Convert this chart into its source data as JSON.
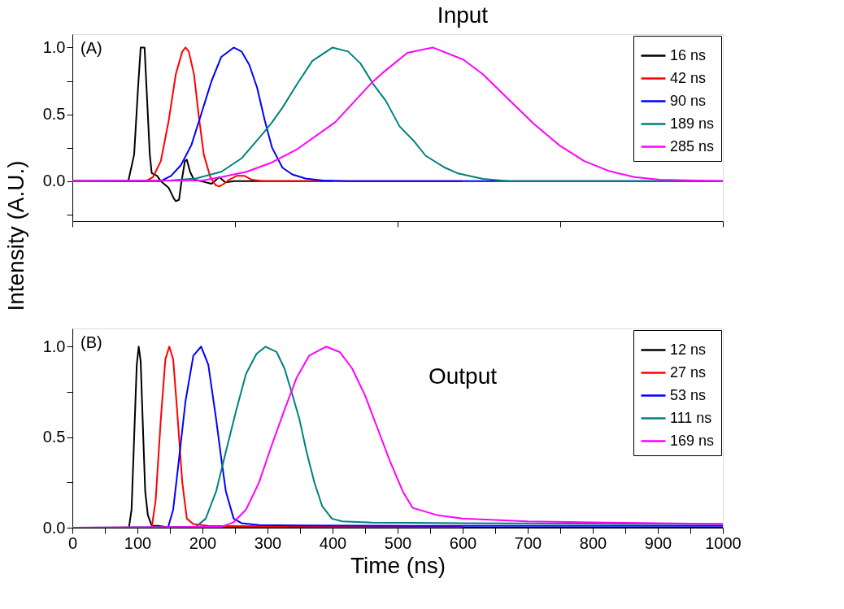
{
  "chart_data": [
    {
      "type": "line",
      "title": "Input",
      "ylabel": "Intensity (A.U.)",
      "annotations": [
        "(A)"
      ],
      "xlim": [
        0,
        1000
      ],
      "ylim": [
        -0.3,
        1.1
      ],
      "xticks": [
        {
          "value": 0,
          "label": null
        },
        {
          "value": 250,
          "label": null
        },
        {
          "value": 500,
          "label": null
        },
        {
          "value": 750,
          "label": null
        },
        {
          "value": 1000,
          "label": null
        }
      ],
      "yticks": [
        {
          "value": -0.25,
          "label": null
        },
        {
          "value": 0,
          "label": "0.0"
        },
        {
          "value": 0.25,
          "label": null
        },
        {
          "value": 0.5,
          "label": "0.5"
        },
        {
          "value": 0.75,
          "label": null
        },
        {
          "value": 1.0,
          "label": "1.0"
        }
      ],
      "tick_labels": "y",
      "legend": "top right",
      "grid": false,
      "series": [
        {
          "name": "16 ns",
          "color": "#000000",
          "x": [
            0,
            86,
            95,
            101,
            105,
            111,
            115,
            119,
            122,
            130,
            136,
            148,
            156,
            159,
            164,
            167,
            173,
            176,
            181,
            187,
            198,
            214,
            226,
            235,
            249,
            268,
            292,
            400
          ],
          "values": [
            0,
            0,
            0.2,
            0.7,
            1.0,
            1.0,
            0.6,
            0.2,
            0.06,
            0.04,
            0.0,
            -0.05,
            -0.13,
            -0.15,
            -0.14,
            -0.03,
            0.15,
            0.16,
            0.07,
            0.01,
            0.0,
            -0.02,
            0.03,
            -0.01,
            0.0,
            0.0,
            0.0,
            0.0
          ]
        },
        {
          "name": "42 ns",
          "color": "#ff0000",
          "x": [
            0,
            113,
            124,
            136,
            148,
            159,
            169,
            174,
            179,
            187,
            194,
            202,
            212,
            220,
            226,
            233,
            241,
            253,
            264,
            276,
            292,
            400,
            600
          ],
          "values": [
            0,
            0,
            0.03,
            0.15,
            0.45,
            0.8,
            0.97,
            1.0,
            0.97,
            0.8,
            0.5,
            0.2,
            0.03,
            -0.03,
            -0.04,
            -0.02,
            0.01,
            0.04,
            0.04,
            0.01,
            0.0,
            0.0,
            0.0
          ]
        },
        {
          "name": "90 ns",
          "color": "#0000ff",
          "x": [
            0,
            136,
            152,
            167,
            183,
            198,
            214,
            229,
            248,
            260,
            272,
            284,
            296,
            307,
            323,
            338,
            358,
            385,
            424,
            600,
            800,
            1000
          ],
          "values": [
            0,
            0.0,
            0.04,
            0.12,
            0.27,
            0.5,
            0.75,
            0.93,
            1.0,
            0.97,
            0.87,
            0.7,
            0.45,
            0.25,
            0.1,
            0.05,
            0.02,
            0.005,
            0.0,
            0.0,
            0.0,
            0.0
          ]
        },
        {
          "name": "189 ns",
          "color": "#008080",
          "x": [
            0,
            150,
            190,
            229,
            260,
            292,
            307,
            323,
            346,
            369,
            400,
            424,
            443,
            462,
            482,
            503,
            525,
            543,
            573,
            593,
            631,
            671,
            800,
            1000
          ],
          "values": [
            0,
            0.005,
            0.02,
            0.07,
            0.17,
            0.35,
            0.44,
            0.55,
            0.73,
            0.9,
            1.0,
            0.97,
            0.88,
            0.73,
            0.6,
            0.41,
            0.3,
            0.19,
            0.1,
            0.057,
            0.017,
            0.0,
            0.0,
            0.0
          ]
        },
        {
          "name": "285 ns",
          "color": "#ff00ff",
          "x": [
            0,
            200,
            229,
            268,
            307,
            346,
            404,
            461,
            477,
            515,
            554,
            601,
            631,
            671,
            709,
            748,
            787,
            826,
            864,
            903,
            1000
          ],
          "values": [
            0,
            0.005,
            0.03,
            0.07,
            0.14,
            0.24,
            0.44,
            0.74,
            0.81,
            0.96,
            1.0,
            0.91,
            0.8,
            0.61,
            0.43,
            0.27,
            0.15,
            0.074,
            0.03,
            0.01,
            0.0
          ]
        }
      ]
    },
    {
      "type": "line",
      "title": "Output",
      "xlabel": "Time (ns)",
      "annotations": [
        "(B)"
      ],
      "xlim": [
        0,
        1000
      ],
      "ylim": [
        0,
        1.1
      ],
      "xticks": [
        0,
        {
          "value": 50,
          "label": null
        },
        100,
        {
          "value": 150,
          "label": null
        },
        200,
        {
          "value": 250,
          "label": null
        },
        300,
        {
          "value": 350,
          "label": null
        },
        400,
        {
          "value": 450,
          "label": null
        },
        500,
        {
          "value": 550,
          "label": null
        },
        600,
        {
          "value": 650,
          "label": null
        },
        700,
        {
          "value": 750,
          "label": null
        },
        800,
        {
          "value": 850,
          "label": null
        },
        900,
        {
          "value": 950,
          "label": null
        },
        1000
      ],
      "yticks": [
        {
          "value": 0,
          "label": "0.0"
        },
        {
          "value": 0.25,
          "label": null
        },
        {
          "value": 0.5,
          "label": "0.5"
        },
        {
          "value": 0.75,
          "label": null
        },
        {
          "value": 1.0,
          "label": "1.0"
        }
      ],
      "legend": "top right",
      "grid": false,
      "series": [
        {
          "name": "12 ns",
          "color": "#000000",
          "x": [
            0,
            87,
            91,
            95,
            99,
            102,
            105,
            109,
            112,
            116,
            122,
            132,
            143,
            200,
            400,
            600,
            800,
            1000
          ],
          "values": [
            0,
            0,
            0.1,
            0.5,
            0.9,
            1.0,
            0.92,
            0.5,
            0.2,
            0.07,
            0.01,
            0.01,
            0.005,
            0.0,
            0.0,
            0.0,
            0.0,
            0.0
          ]
        },
        {
          "name": "27 ns",
          "color": "#ff0000",
          "x": [
            0,
            122,
            128,
            136,
            143,
            149,
            155,
            161,
            169,
            176,
            186,
            209,
            400,
            600
          ],
          "values": [
            0,
            0,
            0.15,
            0.6,
            0.93,
            1.0,
            0.93,
            0.65,
            0.25,
            0.05,
            0.02,
            0.01,
            0.005,
            0.005
          ]
        },
        {
          "name": "53 ns",
          "color": "#0000ff",
          "x": [
            0,
            147,
            155,
            163,
            174,
            186,
            198,
            209,
            221,
            229,
            236,
            248,
            260,
            287,
            345,
            600,
            800,
            1000
          ],
          "values": [
            0,
            0,
            0.1,
            0.35,
            0.7,
            0.95,
            1.0,
            0.9,
            0.6,
            0.38,
            0.2,
            0.05,
            0.025,
            0.015,
            0.012,
            0.01,
            0.01,
            0.01
          ]
        },
        {
          "name": "111 ns",
          "color": "#008080",
          "x": [
            0,
            190,
            205,
            221,
            236,
            252,
            267,
            283,
            297,
            314,
            326,
            337,
            349,
            360,
            372,
            384,
            399,
            415,
            461,
            600,
            800,
            1000
          ],
          "values": [
            0,
            0.005,
            0.05,
            0.2,
            0.42,
            0.65,
            0.85,
            0.96,
            1.0,
            0.97,
            0.88,
            0.75,
            0.6,
            0.42,
            0.25,
            0.12,
            0.05,
            0.035,
            0.028,
            0.025,
            0.022,
            0.02
          ]
        },
        {
          "name": "169 ns",
          "color": "#ff00ff",
          "x": [
            0,
            229,
            248,
            267,
            287,
            306,
            326,
            345,
            364,
            390,
            411,
            430,
            450,
            469,
            488,
            508,
            523,
            560,
            600,
            700,
            850,
            1000
          ],
          "values": [
            0,
            0.005,
            0.03,
            0.1,
            0.25,
            0.45,
            0.65,
            0.83,
            0.95,
            1.0,
            0.97,
            0.88,
            0.73,
            0.55,
            0.37,
            0.2,
            0.11,
            0.07,
            0.05,
            0.035,
            0.027,
            0.02
          ]
        }
      ]
    }
  ]
}
